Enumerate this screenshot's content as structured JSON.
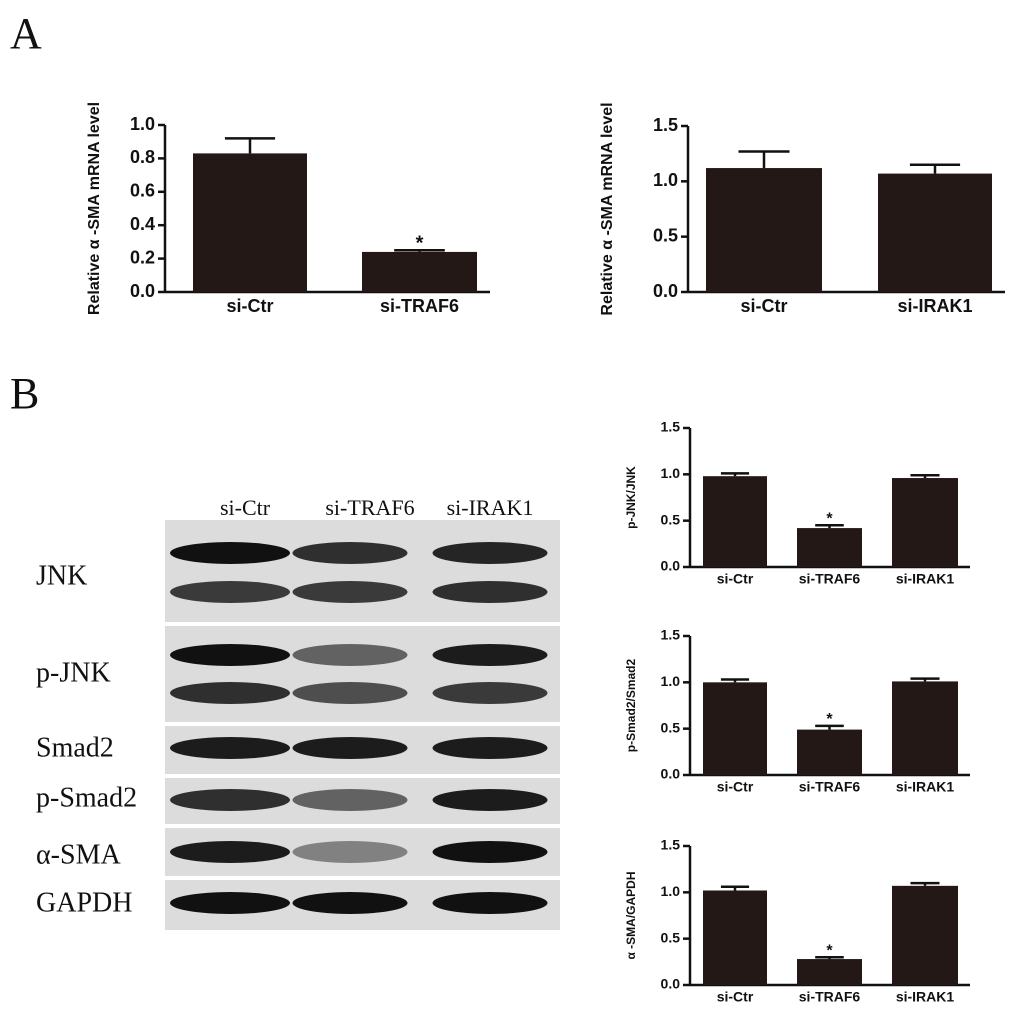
{
  "panel_labels": [
    "A",
    "B"
  ],
  "blot": {
    "lanes": [
      "si-Ctr",
      "si-TRAF6",
      "si-IRAK1"
    ],
    "rows": [
      "JNK",
      "p-JNK",
      "Smad2",
      "p-Smad2",
      "α-SMA",
      "GAPDH"
    ]
  },
  "chart_data": [
    {
      "type": "bar",
      "y_label": "Relative α -SMA mRNA level",
      "categories": [
        "si-Ctr",
        "si-TRAF6"
      ],
      "values": [
        0.83,
        0.24
      ],
      "errors": [
        0.09,
        0.01
      ],
      "significance": [
        null,
        "*"
      ],
      "color": "#231815",
      "ylim": [
        0,
        1.0
      ],
      "yticks": [
        {
          "value": 0,
          "label": "0.0"
        },
        0.2,
        0.4,
        0.6,
        0.8,
        {
          "value": 1,
          "label": "1.0"
        }
      ]
    },
    {
      "type": "bar",
      "y_label": "Relative α -SMA mRNA level",
      "categories": [
        "si-Ctr",
        "si-IRAK1"
      ],
      "values": [
        1.12,
        1.07
      ],
      "errors": [
        0.15,
        0.08
      ],
      "significance": [
        null,
        null
      ],
      "color": "#231815",
      "ylim": [
        0,
        1.5
      ],
      "yticks": [
        {
          "value": 0,
          "label": "0.0"
        },
        0.5,
        {
          "value": 1,
          "label": "1.0"
        },
        1.5
      ]
    },
    {
      "type": "bar",
      "y_label": "p-JNK/JNK",
      "categories": [
        "si-Ctr",
        "si-TRAF6",
        "si-IRAK1"
      ],
      "values": [
        0.98,
        0.42,
        0.96
      ],
      "errors": [
        0.03,
        0.03,
        0.03
      ],
      "significance": [
        null,
        "*",
        null
      ],
      "color": "#231815",
      "ylim": [
        0,
        1.5
      ],
      "yticks": [
        {
          "value": 0,
          "label": "0.0"
        },
        0.5,
        {
          "value": 1,
          "label": "1.0"
        },
        1.5
      ]
    },
    {
      "type": "bar",
      "y_label": "p-Smad2/Smad2",
      "categories": [
        "si-Ctr",
        "si-TRAF6",
        "si-IRAK1"
      ],
      "values": [
        1.0,
        0.49,
        1.01
      ],
      "errors": [
        0.03,
        0.04,
        0.03
      ],
      "significance": [
        null,
        "*",
        null
      ],
      "color": "#231815",
      "ylim": [
        0,
        1.5
      ],
      "yticks": [
        {
          "value": 0,
          "label": "0.0"
        },
        0.5,
        {
          "value": 1,
          "label": "1.0"
        },
        1.5
      ]
    },
    {
      "type": "bar",
      "y_label": "α -SMA/GAPDH",
      "categories": [
        "si-Ctr",
        "si-TRAF6",
        "si-IRAK1"
      ],
      "values": [
        1.02,
        0.28,
        1.07
      ],
      "errors": [
        0.04,
        0.02,
        0.03
      ],
      "significance": [
        null,
        "*",
        null
      ],
      "color": "#231815",
      "ylim": [
        0,
        1.5
      ],
      "yticks": [
        {
          "value": 0,
          "label": "0.0"
        },
        0.5,
        {
          "value": 1,
          "label": "1.0"
        },
        1.5
      ]
    }
  ]
}
